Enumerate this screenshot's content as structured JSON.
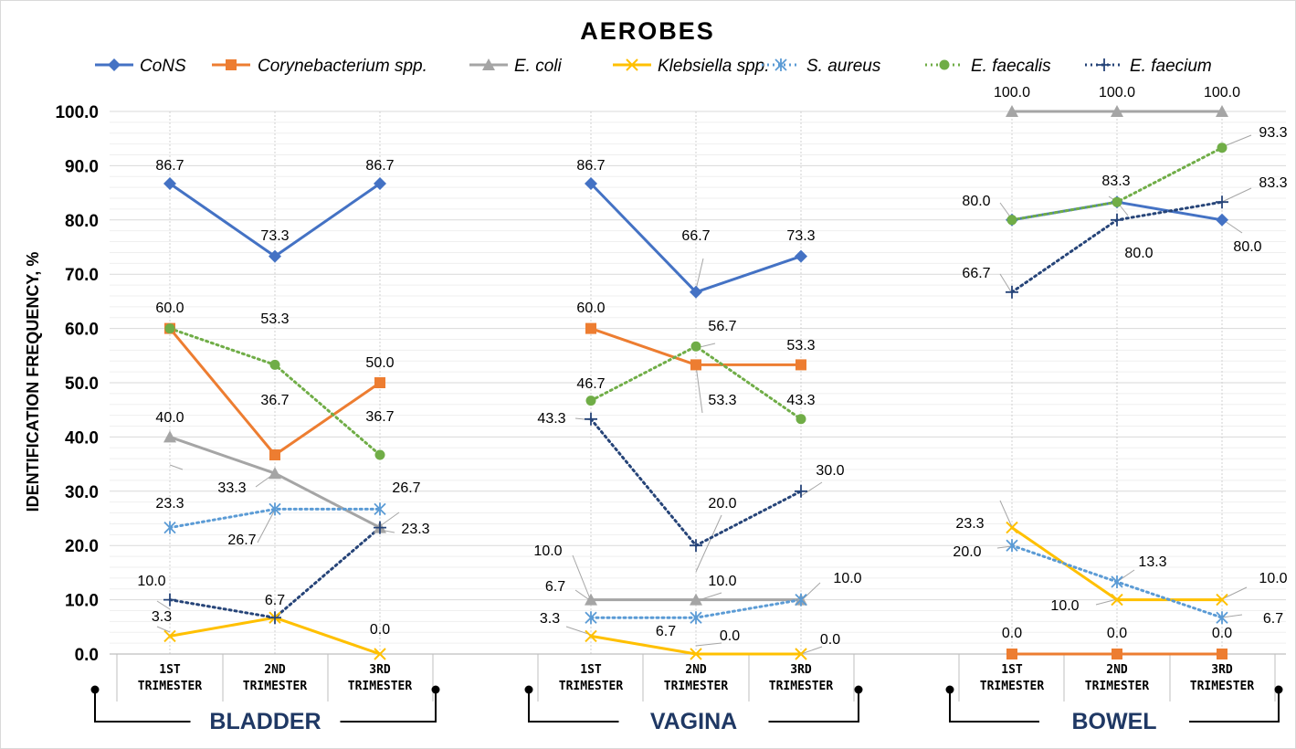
{
  "chart_data": {
    "type": "line",
    "title": "AEROBES",
    "ylabel": "IDENTIFICATION FREQUENCY, %",
    "ylim": [
      0,
      100
    ],
    "yticks": [
      "0.0",
      "10.0",
      "20.0",
      "30.0",
      "40.0",
      "50.0",
      "60.0",
      "70.0",
      "80.0",
      "90.0",
      "100.0"
    ],
    "grid": true,
    "legend_position": "top",
    "categories": [
      [
        "1ST",
        "TRIMESTER"
      ],
      [
        "2ND",
        "TRIMESTER"
      ],
      [
        "3RD",
        "TRIMESTER"
      ]
    ],
    "panels": [
      {
        "name": "BLADDER",
        "series": [
          {
            "name": "CoNS",
            "values": [
              86.7,
              73.3,
              86.7
            ]
          },
          {
            "name": "Corynebacterium spp.",
            "values": [
              60.0,
              36.7,
              50.0
            ]
          },
          {
            "name": "E. coli",
            "values": [
              40.0,
              33.3,
              23.3
            ]
          },
          {
            "name": "Klebsiella spp.",
            "values": [
              3.3,
              6.7,
              0.0
            ]
          },
          {
            "name": "S. aureus",
            "values": [
              23.3,
              26.7,
              26.7
            ]
          },
          {
            "name": "E. faecalis",
            "values": [
              60.0,
              53.3,
              36.7
            ]
          },
          {
            "name": "E. faecium",
            "values": [
              10.0,
              6.7,
              23.3
            ]
          }
        ]
      },
      {
        "name": "VAGINA",
        "series": [
          {
            "name": "CoNS",
            "values": [
              86.7,
              66.7,
              73.3
            ]
          },
          {
            "name": "Corynebacterium spp.",
            "values": [
              60.0,
              53.3,
              53.3
            ]
          },
          {
            "name": "E. coli",
            "values": [
              10.0,
              10.0,
              10.0
            ]
          },
          {
            "name": "Klebsiella spp.",
            "values": [
              3.3,
              0.0,
              0.0
            ]
          },
          {
            "name": "S. aureus",
            "values": [
              6.7,
              6.7,
              10.0
            ]
          },
          {
            "name": "E. faecalis",
            "values": [
              46.7,
              56.7,
              43.3
            ]
          },
          {
            "name": "E. faecium",
            "values": [
              43.3,
              20.0,
              30.0
            ]
          }
        ]
      },
      {
        "name": "BOWEL",
        "series": [
          {
            "name": "CoNS",
            "values": [
              80.0,
              83.3,
              80.0
            ]
          },
          {
            "name": "Corynebacterium spp.",
            "values": [
              0.0,
              0.0,
              0.0
            ]
          },
          {
            "name": "E. coli",
            "values": [
              100.0,
              100.0,
              100.0
            ]
          },
          {
            "name": "Klebsiella spp.",
            "values": [
              23.3,
              10.0,
              10.0
            ]
          },
          {
            "name": "S. aureus",
            "values": [
              20.0,
              13.3,
              6.7
            ]
          },
          {
            "name": "E. faecalis",
            "values": [
              80.0,
              83.3,
              93.3
            ]
          },
          {
            "name": "E. faecium",
            "values": [
              66.7,
              80.0,
              83.3
            ]
          }
        ]
      }
    ],
    "data_labels": [
      {
        "panel": 0,
        "point": 0,
        "text": "86.7"
      },
      {
        "panel": 0,
        "point": 1,
        "text": "73.3"
      },
      {
        "panel": 0,
        "point": 2,
        "text": "86.7"
      },
      {
        "panel": 0,
        "point": 0,
        "text": "60.0"
      },
      {
        "panel": 0,
        "point": 1,
        "text": "53.3"
      },
      {
        "panel": 0,
        "point": 1,
        "text": "36.7"
      },
      {
        "panel": 0,
        "point": 2,
        "text": "50.0"
      },
      {
        "panel": 0,
        "point": 2,
        "text": "36.7"
      },
      {
        "panel": 0,
        "point": 0,
        "text": "40.0"
      },
      {
        "panel": 0,
        "point": 1,
        "text": "33.3"
      },
      {
        "panel": 0,
        "point": 0,
        "text": "23.3"
      },
      {
        "panel": 0,
        "point": 1,
        "text": "26.7"
      },
      {
        "panel": 0,
        "point": 2,
        "text": "26.7"
      },
      {
        "panel": 0,
        "point": 2,
        "text": "23.3"
      },
      {
        "panel": 0,
        "point": 0,
        "text": "10.0"
      },
      {
        "panel": 0,
        "point": 1,
        "text": "6.7"
      },
      {
        "panel": 0,
        "point": 0,
        "text": "3.3"
      },
      {
        "panel": 0,
        "point": 2,
        "text": "0.0"
      },
      {
        "panel": 1,
        "point": 0,
        "text": "86.7"
      },
      {
        "panel": 1,
        "point": 1,
        "text": "66.7"
      },
      {
        "panel": 1,
        "point": 2,
        "text": "73.3"
      },
      {
        "panel": 1,
        "point": 0,
        "text": "60.0"
      },
      {
        "panel": 1,
        "point": 1,
        "text": "56.7"
      },
      {
        "panel": 1,
        "point": 2,
        "text": "53.3"
      },
      {
        "panel": 1,
        "point": 0,
        "text": "46.7"
      },
      {
        "panel": 1,
        "point": 1,
        "text": "53.3"
      },
      {
        "panel": 1,
        "point": 2,
        "text": "43.3"
      },
      {
        "panel": 1,
        "point": 0,
        "text": "43.3"
      },
      {
        "panel": 1,
        "point": 1,
        "text": "20.0"
      },
      {
        "panel": 1,
        "point": 2,
        "text": "30.0"
      },
      {
        "panel": 1,
        "point": 0,
        "text": "10.0"
      },
      {
        "panel": 1,
        "point": 0,
        "text": "6.7"
      },
      {
        "panel": 1,
        "point": 1,
        "text": "10.0"
      },
      {
        "panel": 1,
        "point": 2,
        "text": "10.0"
      },
      {
        "panel": 1,
        "point": 0,
        "text": "3.3"
      },
      {
        "panel": 1,
        "point": 1,
        "text": "6.7"
      },
      {
        "panel": 1,
        "point": 1,
        "text": "0.0"
      },
      {
        "panel": 1,
        "point": 2,
        "text": "0.0"
      },
      {
        "panel": 2,
        "point": 0,
        "text": "100.0"
      },
      {
        "panel": 2,
        "point": 1,
        "text": "100.0"
      },
      {
        "panel": 2,
        "point": 2,
        "text": "100.0"
      },
      {
        "panel": 2,
        "point": 2,
        "text": "93.3"
      },
      {
        "panel": 2,
        "point": 1,
        "text": "83.3"
      },
      {
        "panel": 2,
        "point": 2,
        "text": "83.3"
      },
      {
        "panel": 2,
        "point": 0,
        "text": "80.0"
      },
      {
        "panel": 2,
        "point": 1,
        "text": "80.0"
      },
      {
        "panel": 2,
        "point": 2,
        "text": "80.0"
      },
      {
        "panel": 2,
        "point": 0,
        "text": "66.7"
      },
      {
        "panel": 2,
        "point": 0,
        "text": "23.3"
      },
      {
        "panel": 2,
        "point": 0,
        "text": "20.0"
      },
      {
        "panel": 2,
        "point": 1,
        "text": "13.3"
      },
      {
        "panel": 2,
        "point": 1,
        "text": "10.0"
      },
      {
        "panel": 2,
        "point": 2,
        "text": "10.0"
      },
      {
        "panel": 2,
        "point": 2,
        "text": "6.7"
      },
      {
        "panel": 2,
        "point": 0,
        "text": "0.0"
      },
      {
        "panel": 2,
        "point": 1,
        "text": "0.0"
      },
      {
        "panel": 2,
        "point": 2,
        "text": "0.0"
      }
    ],
    "series_styles": [
      {
        "name": "CoNS",
        "color": "#4472c4",
        "marker": "diamond",
        "dash": "solid"
      },
      {
        "name": "Corynebacterium spp.",
        "color": "#ed7d31",
        "marker": "square",
        "dash": "solid"
      },
      {
        "name": "E. coli",
        "color": "#a5a5a5",
        "marker": "triangle",
        "dash": "solid"
      },
      {
        "name": "Klebsiella spp.",
        "color": "#ffc000",
        "marker": "x",
        "dash": "solid"
      },
      {
        "name": "S. aureus",
        "color": "#5b9bd5",
        "marker": "star",
        "dash": "dot"
      },
      {
        "name": "E. faecalis",
        "color": "#70ad47",
        "marker": "circle",
        "dash": "dot"
      },
      {
        "name": "E. faecium",
        "color": "#264478",
        "marker": "plus",
        "dash": "dot"
      }
    ]
  }
}
